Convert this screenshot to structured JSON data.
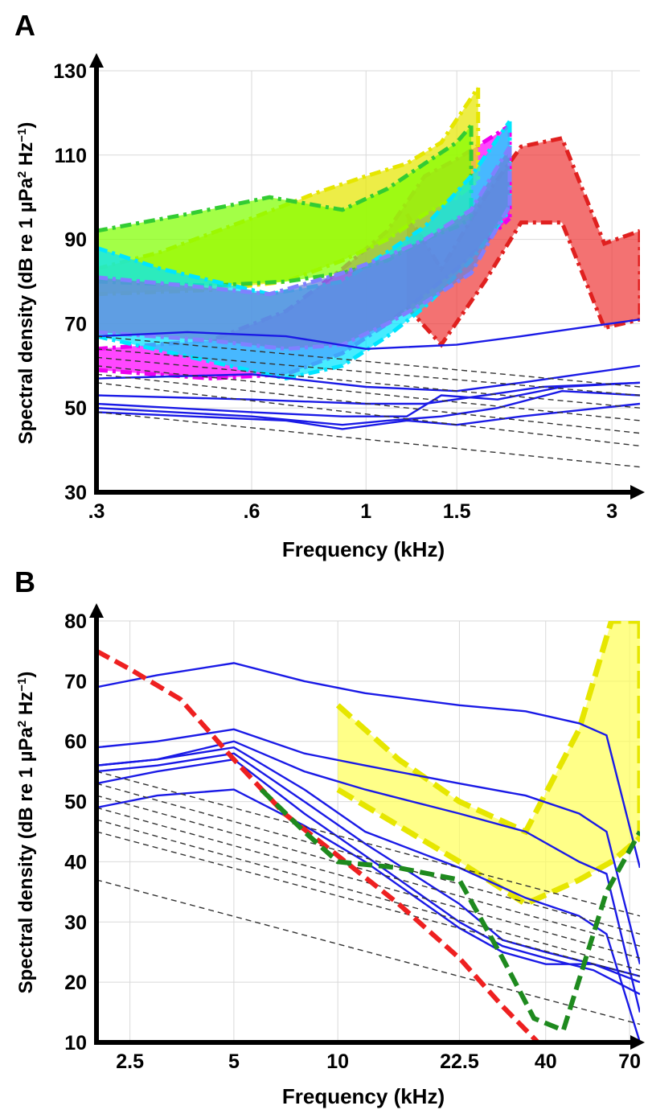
{
  "chart_data": [
    {
      "panel": "A",
      "type": "area",
      "xlabel": "Frequency (kHz)",
      "ylabel_parts": [
        "Spectral density (dB re 1 µPa",
        "2",
        " Hz",
        "−1",
        ")"
      ],
      "xscale": "log",
      "xlim": [
        0.3,
        3.4
      ],
      "ylim": [
        30,
        130
      ],
      "xticks": [
        {
          "value": 0.3,
          "label": ".3"
        },
        {
          "value": 0.6,
          "label": ".6"
        },
        {
          "value": 1,
          "label": "1"
        },
        {
          "value": 1.5,
          "label": "1.5"
        },
        {
          "value": 3,
          "label": "3"
        }
      ],
      "yticks": [
        30,
        50,
        70,
        90,
        110,
        130
      ],
      "grid": true,
      "bands": [
        {
          "color": "#ee3b3b",
          "edge": "#e0201f",
          "upper": [
            [
              1.2,
              96
            ],
            [
              1.4,
              83
            ],
            [
              1.7,
              100
            ],
            [
              2.0,
              112
            ],
            [
              2.4,
              114
            ],
            [
              2.9,
              89
            ],
            [
              3.4,
              92
            ]
          ],
          "lower": [
            [
              1.2,
              74
            ],
            [
              1.4,
              65
            ],
            [
              1.7,
              80
            ],
            [
              2.0,
              94
            ],
            [
              2.4,
              94
            ],
            [
              2.9,
              69
            ],
            [
              3.4,
              71
            ]
          ]
        },
        {
          "color": "#ff00ff",
          "edge": "#ee00ee",
          "upper": [
            [
              0.3,
              64
            ],
            [
              0.5,
              66
            ],
            [
              0.7,
              73
            ],
            [
              0.9,
              83
            ],
            [
              1.1,
              92
            ],
            [
              1.3,
              105
            ],
            [
              1.5,
              109
            ],
            [
              1.9,
              117
            ]
          ],
          "lower": [
            [
              0.3,
              59
            ],
            [
              0.5,
              57
            ],
            [
              0.7,
              58
            ],
            [
              0.9,
              63
            ],
            [
              1.1,
              70
            ],
            [
              1.3,
              77
            ],
            [
              1.5,
              83
            ],
            [
              1.9,
              95
            ]
          ]
        },
        {
          "color": "#e6e600",
          "edge": "#e6e600",
          "upper": [
            [
              0.3,
              83
            ],
            [
              0.4,
              87
            ],
            [
              0.6,
              95
            ],
            [
              0.8,
              101
            ],
            [
              1.0,
              105
            ],
            [
              1.2,
              108
            ],
            [
              1.4,
              113
            ],
            [
              1.65,
              126
            ]
          ],
          "lower": [
            [
              0.3,
              77
            ],
            [
              0.5,
              78
            ],
            [
              0.7,
              80
            ],
            [
              0.9,
              85
            ],
            [
              1.1,
              90
            ],
            [
              1.3,
              96
            ],
            [
              1.5,
              100
            ],
            [
              1.65,
              104
            ]
          ]
        },
        {
          "color": "#7fff00",
          "edge": "#33cc33",
          "upper": [
            [
              0.3,
              92
            ],
            [
              0.45,
              96
            ],
            [
              0.65,
              100
            ],
            [
              0.9,
              97
            ],
            [
              1.1,
              102
            ],
            [
              1.3,
              108
            ],
            [
              1.5,
              113
            ],
            [
              1.6,
              117
            ]
          ],
          "lower": [
            [
              0.3,
              80
            ],
            [
              0.5,
              79
            ],
            [
              0.7,
              80
            ],
            [
              0.9,
              82
            ],
            [
              1.1,
              85
            ],
            [
              1.3,
              90
            ],
            [
              1.5,
              93
            ],
            [
              1.6,
              95
            ]
          ]
        },
        {
          "color": "#00e5ff",
          "edge": "#00e5ff",
          "upper": [
            [
              0.3,
              88
            ],
            [
              0.4,
              83
            ],
            [
              0.65,
              77
            ],
            [
              0.9,
              80
            ],
            [
              1.1,
              87
            ],
            [
              1.3,
              93
            ],
            [
              1.6,
              105
            ],
            [
              1.9,
              118
            ]
          ],
          "lower": [
            [
              0.3,
              67
            ],
            [
              0.5,
              61
            ],
            [
              0.7,
              57
            ],
            [
              0.9,
              60
            ],
            [
              1.1,
              67
            ],
            [
              1.3,
              74
            ],
            [
              1.6,
              85
            ],
            [
              1.9,
              97
            ]
          ]
        },
        {
          "color": "#6a7fd8",
          "edge": "#8080ff",
          "upper": [
            [
              0.3,
              81
            ],
            [
              0.45,
              79
            ],
            [
              0.65,
              77
            ],
            [
              0.9,
              82
            ],
            [
              1.1,
              86
            ],
            [
              1.3,
              90
            ],
            [
              1.6,
              97
            ],
            [
              1.9,
              112
            ]
          ],
          "lower": [
            [
              0.3,
              68
            ],
            [
              0.5,
              66
            ],
            [
              0.7,
              64
            ],
            [
              0.9,
              65
            ],
            [
              1.1,
              70
            ],
            [
              1.3,
              75
            ],
            [
              1.6,
              82
            ],
            [
              1.9,
              98
            ]
          ]
        }
      ],
      "solid_lines": [
        [
          [
            0.3,
            67
          ],
          [
            0.45,
            68
          ],
          [
            0.7,
            67
          ],
          [
            1.0,
            64
          ],
          [
            1.5,
            65
          ],
          [
            2.0,
            67
          ],
          [
            2.6,
            69
          ],
          [
            3.4,
            71
          ]
        ],
        [
          [
            0.3,
            57
          ],
          [
            0.6,
            58
          ],
          [
            1.0,
            55
          ],
          [
            1.5,
            54
          ],
          [
            2.0,
            56
          ],
          [
            2.6,
            58
          ],
          [
            3.4,
            60
          ]
        ],
        [
          [
            0.3,
            53
          ],
          [
            0.6,
            52
          ],
          [
            1.0,
            51
          ],
          [
            1.3,
            51
          ],
          [
            1.7,
            53
          ],
          [
            2.2,
            55
          ],
          [
            3.4,
            56
          ]
        ],
        [
          [
            0.3,
            51
          ],
          [
            0.6,
            49
          ],
          [
            0.9,
            48
          ],
          [
            1.2,
            48
          ],
          [
            1.4,
            53
          ],
          [
            1.8,
            52
          ],
          [
            2.4,
            55
          ],
          [
            3.4,
            56
          ]
        ],
        [
          [
            0.3,
            50
          ],
          [
            0.6,
            48
          ],
          [
            0.9,
            46
          ],
          [
            1.1,
            47
          ],
          [
            1.4,
            48
          ],
          [
            1.8,
            50
          ],
          [
            2.4,
            54
          ],
          [
            3.4,
            53
          ]
        ],
        [
          [
            0.3,
            49
          ],
          [
            0.7,
            47
          ],
          [
            0.9,
            45
          ],
          [
            1.2,
            47
          ],
          [
            1.5,
            46
          ],
          [
            2.0,
            48
          ],
          [
            3.4,
            51
          ]
        ]
      ],
      "dashed_lines": [
        [
          [
            0.3,
            67
          ],
          [
            3.4,
            55
          ]
        ],
        [
          [
            0.3,
            64
          ],
          [
            3.4,
            53
          ]
        ],
        [
          [
            0.3,
            62
          ],
          [
            3.4,
            50
          ]
        ],
        [
          [
            0.3,
            60
          ],
          [
            3.4,
            47
          ]
        ],
        [
          [
            0.3,
            58
          ],
          [
            3.4,
            44
          ]
        ],
        [
          [
            0.3,
            56
          ],
          [
            3.4,
            41
          ]
        ],
        [
          [
            0.3,
            49
          ],
          [
            3.4,
            36
          ]
        ]
      ]
    },
    {
      "panel": "B",
      "type": "area",
      "xlabel": "Frequency (kHz)",
      "ylabel_parts": [
        "Spectral density (dB re 1 µPa",
        "2",
        " Hz",
        "−1",
        ")"
      ],
      "xscale": "log",
      "xlim": [
        2,
        75
      ],
      "ylim": [
        10,
        80
      ],
      "xticks": [
        {
          "value": 2.5,
          "label": "2.5"
        },
        {
          "value": 5,
          "label": "5"
        },
        {
          "value": 10,
          "label": "10"
        },
        {
          "value": 22.5,
          "label": "22.5"
        },
        {
          "value": 40,
          "label": "40"
        },
        {
          "value": 70,
          "label": "70"
        }
      ],
      "yticks": [
        10,
        20,
        30,
        40,
        50,
        60,
        70,
        80
      ],
      "grid": true,
      "bands": [
        {
          "color": "#ffff55",
          "edge": "#e6e600",
          "upper": [
            [
              10,
              66
            ],
            [
              15,
              57
            ],
            [
              22.5,
              50
            ],
            [
              35,
              45
            ],
            [
              50,
              62
            ],
            [
              62,
              80
            ],
            [
              75,
              80
            ]
          ],
          "lower": [
            [
              10,
              52
            ],
            [
              15,
              46
            ],
            [
              22.5,
              40
            ],
            [
              35,
              33
            ],
            [
              50,
              37
            ],
            [
              62,
              40
            ],
            [
              75,
              44
            ]
          ]
        }
      ],
      "red_line": [
        [
          2,
          75
        ],
        [
          2.5,
          72
        ],
        [
          3.5,
          67
        ],
        [
          5,
          57
        ],
        [
          7,
          48
        ],
        [
          10,
          41
        ],
        [
          15,
          33
        ],
        [
          22.5,
          24
        ],
        [
          30,
          16
        ],
        [
          38,
          10
        ]
      ],
      "green_line": [
        [
          6,
          52
        ],
        [
          8,
          45
        ],
        [
          10,
          40
        ],
        [
          15,
          39
        ],
        [
          22.5,
          37
        ],
        [
          30,
          24
        ],
        [
          37,
          14
        ],
        [
          45,
          12
        ],
        [
          60,
          35
        ],
        [
          75,
          45
        ]
      ],
      "solid_lines": [
        [
          [
            2,
            69
          ],
          [
            3,
            71
          ],
          [
            5,
            73
          ],
          [
            8,
            70
          ],
          [
            12,
            68
          ],
          [
            22.5,
            66
          ],
          [
            35,
            65
          ],
          [
            50,
            63
          ],
          [
            60,
            61
          ],
          [
            75,
            39
          ]
        ],
        [
          [
            2,
            59
          ],
          [
            3,
            60
          ],
          [
            5,
            62
          ],
          [
            8,
            58
          ],
          [
            12,
            56
          ],
          [
            22.5,
            53
          ],
          [
            35,
            51
          ],
          [
            50,
            48
          ],
          [
            60,
            45
          ],
          [
            75,
            23
          ]
        ],
        [
          [
            2,
            56
          ],
          [
            3,
            57
          ],
          [
            5,
            60
          ],
          [
            8,
            55
          ],
          [
            12,
            52
          ],
          [
            22.5,
            48
          ],
          [
            35,
            45
          ],
          [
            50,
            40
          ],
          [
            60,
            38
          ],
          [
            75,
            15
          ]
        ],
        [
          [
            2,
            56
          ],
          [
            3,
            57
          ],
          [
            5,
            59
          ],
          [
            8,
            52
          ],
          [
            12,
            45
          ],
          [
            22.5,
            39
          ],
          [
            35,
            34
          ],
          [
            50,
            31
          ],
          [
            60,
            28
          ],
          [
            75,
            10
          ]
        ],
        [
          [
            2,
            55
          ],
          [
            3,
            56
          ],
          [
            5,
            58
          ],
          [
            8,
            50
          ],
          [
            12,
            43
          ],
          [
            22.5,
            33
          ],
          [
            30,
            27
          ],
          [
            40,
            25
          ],
          [
            55,
            23
          ],
          [
            75,
            20
          ]
        ],
        [
          [
            2,
            53
          ],
          [
            3,
            55
          ],
          [
            5,
            57
          ],
          [
            8,
            48
          ],
          [
            12,
            41
          ],
          [
            22.5,
            30
          ],
          [
            30,
            26
          ],
          [
            40,
            24
          ],
          [
            55,
            22
          ],
          [
            75,
            18
          ]
        ],
        [
          [
            2,
            49
          ],
          [
            3,
            51
          ],
          [
            5,
            52
          ],
          [
            8,
            46
          ],
          [
            12,
            40
          ],
          [
            22.5,
            29
          ],
          [
            30,
            25
          ],
          [
            40,
            23
          ],
          [
            55,
            23
          ],
          [
            75,
            21
          ]
        ]
      ],
      "dashed_lines": [
        [
          [
            2,
            55
          ],
          [
            75,
            31
          ]
        ],
        [
          [
            2,
            53
          ],
          [
            75,
            28
          ]
        ],
        [
          [
            2,
            51
          ],
          [
            75,
            26
          ]
        ],
        [
          [
            2,
            49
          ],
          [
            75,
            24
          ]
        ],
        [
          [
            2,
            47
          ],
          [
            75,
            22
          ]
        ],
        [
          [
            2,
            45
          ],
          [
            75,
            21
          ]
        ],
        [
          [
            2,
            37
          ],
          [
            75,
            13
          ]
        ]
      ]
    }
  ]
}
